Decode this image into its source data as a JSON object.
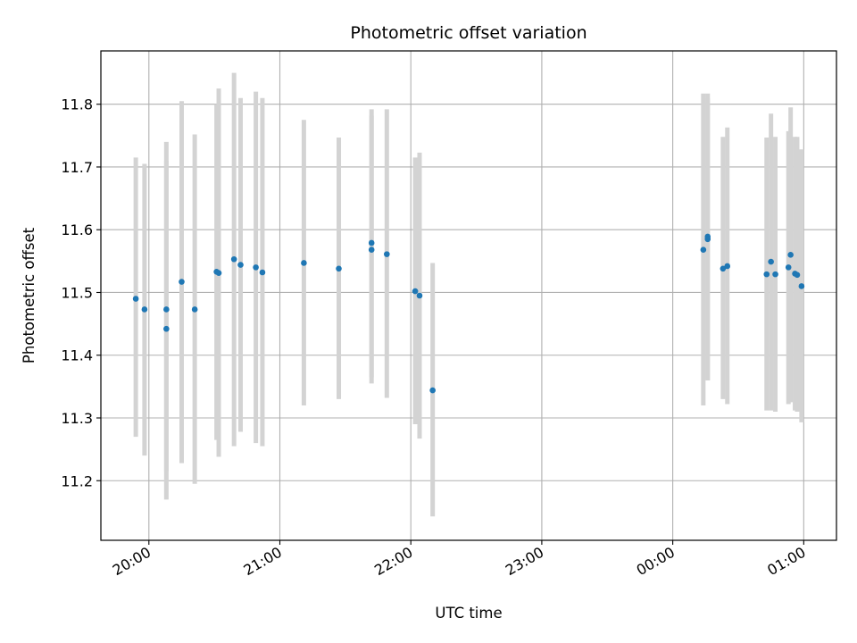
{
  "chart_data": {
    "type": "scatter",
    "title": "Photometric offset variation",
    "xlabel": "UTC time",
    "ylabel": "Photometric offset",
    "x_axis": "time",
    "xlim": [
      "19:38",
      "01:15"
    ],
    "ylim": [
      11.105,
      11.885
    ],
    "grid": true,
    "x_ticks": [
      "20:00",
      "21:00",
      "22:00",
      "23:00",
      "00:00",
      "01:00"
    ],
    "y_ticks": [
      "11.2",
      "11.3",
      "11.4",
      "11.5",
      "11.6",
      "11.7",
      "11.8"
    ],
    "colors": {
      "points": "#1f77b4",
      "error_bars": "#d3d3d3",
      "grid": "#b0b0b0"
    },
    "series": [
      {
        "points": [
          {
            "x": "19:54",
            "y": 11.49,
            "ylow": 11.27,
            "yhigh": 11.715
          },
          {
            "x": "19:58",
            "y": 11.473,
            "ylow": 11.24,
            "yhigh": 11.705
          },
          {
            "x": "20:08",
            "y": 11.473,
            "ylow": 11.215,
            "yhigh": 11.74
          },
          {
            "x": "20:08",
            "y": 11.442,
            "ylow": 11.17,
            "yhigh": 11.71
          },
          {
            "x": "20:15",
            "y": 11.517,
            "ylow": 11.228,
            "yhigh": 11.805
          },
          {
            "x": "20:21",
            "y": 11.473,
            "ylow": 11.195,
            "yhigh": 11.752
          },
          {
            "x": "20:31",
            "y": 11.533,
            "ylow": 11.265,
            "yhigh": 11.8
          },
          {
            "x": "20:32",
            "y": 11.531,
            "ylow": 11.238,
            "yhigh": 11.825
          },
          {
            "x": "20:39",
            "y": 11.553,
            "ylow": 11.255,
            "yhigh": 11.85
          },
          {
            "x": "20:42",
            "y": 11.544,
            "ylow": 11.278,
            "yhigh": 11.81
          },
          {
            "x": "20:49",
            "y": 11.54,
            "ylow": 11.26,
            "yhigh": 11.82
          },
          {
            "x": "20:52",
            "y": 11.532,
            "ylow": 11.255,
            "yhigh": 11.81
          },
          {
            "x": "21:11",
            "y": 11.547,
            "ylow": 11.32,
            "yhigh": 11.775
          },
          {
            "x": "21:27",
            "y": 11.538,
            "ylow": 11.33,
            "yhigh": 11.747
          },
          {
            "x": "21:42",
            "y": 11.579,
            "ylow": 11.365,
            "yhigh": 11.792
          },
          {
            "x": "21:42",
            "y": 11.568,
            "ylow": 11.355,
            "yhigh": 11.782
          },
          {
            "x": "21:49",
            "y": 11.561,
            "ylow": 11.332,
            "yhigh": 11.792
          },
          {
            "x": "22:02",
            "y": 11.502,
            "ylow": 11.29,
            "yhigh": 11.715
          },
          {
            "x": "22:04",
            "y": 11.495,
            "ylow": 11.267,
            "yhigh": 11.723
          },
          {
            "x": "22:10",
            "y": 11.344,
            "ylow": 11.143,
            "yhigh": 11.547
          },
          {
            "x": "00:14",
            "y": 11.568,
            "ylow": 11.32,
            "yhigh": 11.817
          },
          {
            "x": "00:16",
            "y": 11.585,
            "ylow": 11.36,
            "yhigh": 11.81
          },
          {
            "x": "00:16",
            "y": 11.589,
            "ylow": 11.36,
            "yhigh": 11.817
          },
          {
            "x": "00:23",
            "y": 11.538,
            "ylow": 11.33,
            "yhigh": 11.748
          },
          {
            "x": "00:25",
            "y": 11.542,
            "ylow": 11.322,
            "yhigh": 11.763
          },
          {
            "x": "00:43",
            "y": 11.529,
            "ylow": 11.312,
            "yhigh": 11.747
          },
          {
            "x": "00:45",
            "y": 11.549,
            "ylow": 11.312,
            "yhigh": 11.785
          },
          {
            "x": "00:47",
            "y": 11.529,
            "ylow": 11.31,
            "yhigh": 11.748
          },
          {
            "x": "00:53",
            "y": 11.54,
            "ylow": 11.322,
            "yhigh": 11.757
          },
          {
            "x": "00:54",
            "y": 11.56,
            "ylow": 11.325,
            "yhigh": 11.795
          },
          {
            "x": "00:56",
            "y": 11.53,
            "ylow": 11.312,
            "yhigh": 11.748
          },
          {
            "x": "00:57",
            "y": 11.528,
            "ylow": 11.31,
            "yhigh": 11.748
          },
          {
            "x": "00:59",
            "y": 11.51,
            "ylow": 11.293,
            "yhigh": 11.728
          }
        ]
      }
    ]
  }
}
